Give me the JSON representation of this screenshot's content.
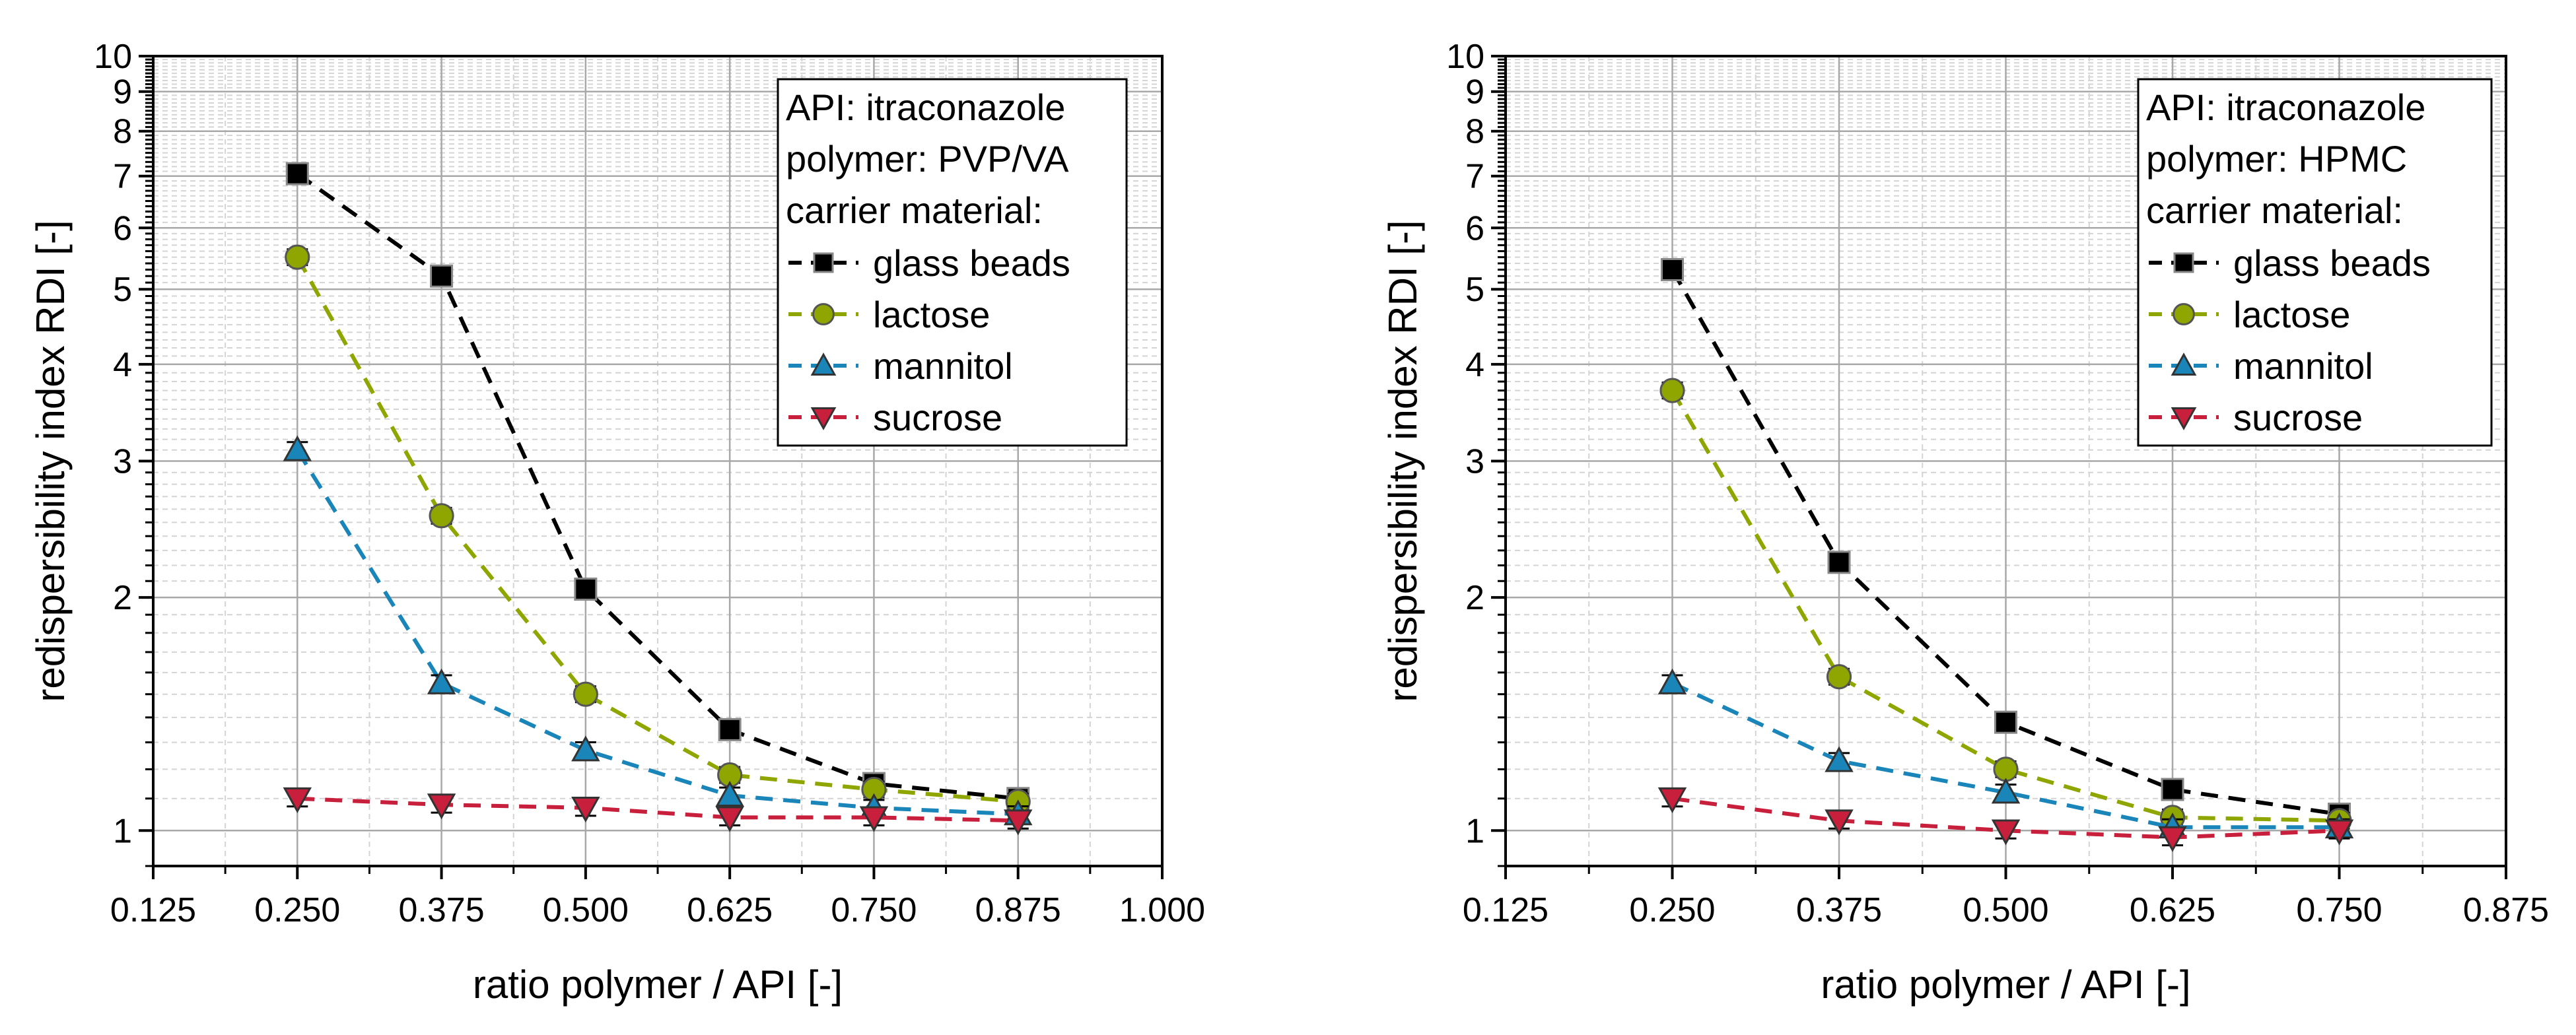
{
  "chart_data": [
    {
      "type": "line",
      "xlabel": "ratio polymer / API [-]",
      "ylabel": "redispersibility index RDI [-]",
      "yscale": "log",
      "xlim": [
        0.125,
        1.0
      ],
      "ylim": [
        0.9,
        10
      ],
      "x_ticks": [
        "0.125",
        "0.250",
        "0.375",
        "0.500",
        "0.625",
        "0.750",
        "0.875",
        "1.000"
      ],
      "y_ticks": [
        "1",
        "2",
        "3",
        "4",
        "5",
        "6",
        "7",
        "8",
        "9",
        "10"
      ],
      "legend": {
        "placement": "top-right",
        "lines": [
          "API: itraconazole",
          "polymer: PVP/VA",
          "carrier material:"
        ]
      },
      "series": [
        {
          "name": "glass beads",
          "color": "#000000",
          "marker": "square",
          "x": [
            0.25,
            0.375,
            0.5,
            0.625,
            0.75,
            0.875
          ],
          "values": [
            7.05,
            5.2,
            2.05,
            1.35,
            1.15,
            1.1
          ]
        },
        {
          "name": "lactose",
          "color": "#8fa600",
          "marker": "circle",
          "x": [
            0.25,
            0.375,
            0.5,
            0.625,
            0.75,
            0.875
          ],
          "values": [
            5.5,
            2.55,
            1.5,
            1.18,
            1.13,
            1.09
          ]
        },
        {
          "name": "mannitol",
          "color": "#1a85b8",
          "marker": "triangle-up",
          "x": [
            0.25,
            0.375,
            0.5,
            0.625,
            0.75,
            0.875
          ],
          "values": [
            3.1,
            1.55,
            1.27,
            1.11,
            1.07,
            1.05
          ]
        },
        {
          "name": "sucrose",
          "color": "#c8203c",
          "marker": "triangle-down",
          "x": [
            0.25,
            0.375,
            0.5,
            0.625,
            0.75,
            0.875
          ],
          "values": [
            1.1,
            1.08,
            1.07,
            1.04,
            1.04,
            1.03
          ]
        }
      ]
    },
    {
      "type": "line",
      "xlabel": "ratio polymer / API [-]",
      "ylabel": "redispersibility index RDI [-]",
      "yscale": "log",
      "xlim": [
        0.125,
        0.875
      ],
      "ylim": [
        0.9,
        10
      ],
      "x_ticks": [
        "0.125",
        "0.250",
        "0.375",
        "0.500",
        "0.625",
        "0.750",
        "0.875"
      ],
      "y_ticks": [
        "1",
        "2",
        "3",
        "4",
        "5",
        "6",
        "7",
        "8",
        "9",
        "10"
      ],
      "legend": {
        "placement": "top-right",
        "lines": [
          "API: itraconazole",
          "polymer: HPMC",
          "carrier material:"
        ]
      },
      "series": [
        {
          "name": "glass beads",
          "color": "#000000",
          "marker": "square",
          "x": [
            0.25,
            0.375,
            0.5,
            0.625,
            0.75
          ],
          "values": [
            5.3,
            2.22,
            1.38,
            1.13,
            1.05
          ]
        },
        {
          "name": "lactose",
          "color": "#8fa600",
          "marker": "circle",
          "x": [
            0.25,
            0.375,
            0.5,
            0.625,
            0.75
          ],
          "values": [
            3.7,
            1.58,
            1.2,
            1.04,
            1.03
          ]
        },
        {
          "name": "mannitol",
          "color": "#1a85b8",
          "marker": "triangle-up",
          "x": [
            0.25,
            0.375,
            0.5,
            0.625,
            0.75
          ],
          "values": [
            1.55,
            1.23,
            1.12,
            1.01,
            1.01
          ]
        },
        {
          "name": "sucrose",
          "color": "#c8203c",
          "marker": "triangle-down",
          "x": [
            0.25,
            0.375,
            0.5,
            0.625,
            0.75
          ],
          "values": [
            1.1,
            1.03,
            1.0,
            0.98,
            1.0
          ]
        }
      ]
    }
  ]
}
